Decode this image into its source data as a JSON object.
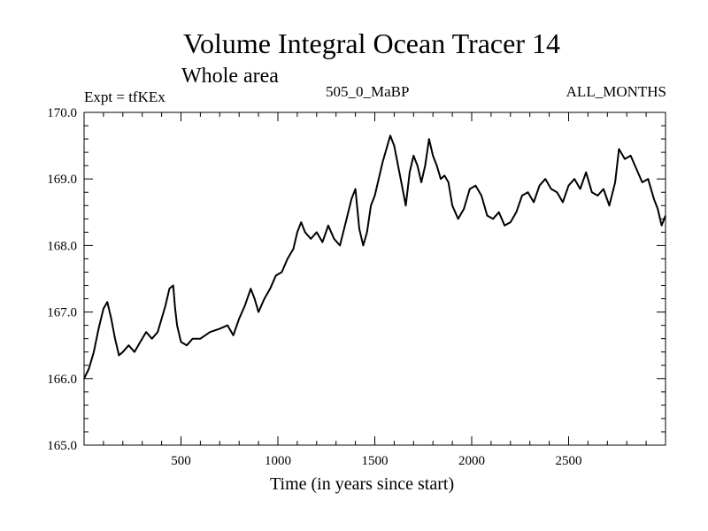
{
  "chart_data": {
    "type": "line",
    "title": "Volume Integral Ocean Tracer 14",
    "subtitle": "Whole area",
    "annotations": {
      "left": "Expt = tfKEx",
      "center": "505_0_MaBP",
      "right": "ALL_MONTHS"
    },
    "xlabel": "Time (in years since start)",
    "ylabel": "",
    "xlim": [
      0,
      3000
    ],
    "ylim": [
      165.0,
      170.0
    ],
    "x_ticks": [
      500,
      1000,
      1500,
      2000,
      2500
    ],
    "x_tick_labels": [
      "500",
      "1000",
      "1500",
      "2000",
      "2500"
    ],
    "y_ticks": [
      165.0,
      166.0,
      167.0,
      168.0,
      169.0,
      170.0
    ],
    "y_tick_labels": [
      "165.0",
      "166.0",
      "167.0",
      "168.0",
      "169.0",
      "170.0"
    ],
    "grid": false,
    "legend": "none",
    "line_color": "#000000",
    "series": [
      {
        "x": [
          0,
          25,
          50,
          75,
          100,
          120,
          140,
          160,
          180,
          200,
          230,
          260,
          290,
          320,
          350,
          380,
          400,
          420,
          440,
          460,
          470,
          480,
          500,
          530,
          560,
          600,
          650,
          700,
          740,
          770,
          800,
          830,
          860,
          880,
          900,
          930,
          960,
          990,
          1020,
          1050,
          1080,
          1100,
          1120,
          1140,
          1170,
          1200,
          1230,
          1260,
          1290,
          1320,
          1350,
          1380,
          1400,
          1420,
          1440,
          1460,
          1480,
          1500,
          1520,
          1540,
          1560,
          1580,
          1600,
          1620,
          1640,
          1660,
          1680,
          1700,
          1720,
          1740,
          1760,
          1780,
          1800,
          1820,
          1840,
          1860,
          1880,
          1900,
          1930,
          1960,
          1990,
          2020,
          2050,
          2080,
          2110,
          2140,
          2170,
          2200,
          2230,
          2260,
          2290,
          2320,
          2350,
          2380,
          2410,
          2440,
          2470,
          2500,
          2530,
          2560,
          2590,
          2620,
          2650,
          2680,
          2710,
          2740,
          2760,
          2790,
          2820,
          2850,
          2880,
          2910,
          2940,
          2960,
          2980,
          3000
        ],
        "y": [
          166.0,
          166.15,
          166.4,
          166.75,
          167.05,
          167.15,
          166.9,
          166.6,
          166.35,
          166.4,
          166.5,
          166.4,
          166.55,
          166.7,
          166.6,
          166.7,
          166.9,
          167.1,
          167.35,
          167.4,
          167.05,
          166.8,
          166.55,
          166.5,
          166.6,
          166.6,
          166.7,
          166.75,
          166.8,
          166.65,
          166.9,
          167.1,
          167.35,
          167.2,
          167.0,
          167.2,
          167.35,
          167.55,
          167.6,
          167.8,
          167.95,
          168.2,
          168.35,
          168.2,
          168.1,
          168.2,
          168.05,
          168.3,
          168.1,
          168.0,
          168.35,
          168.7,
          168.85,
          168.25,
          168.0,
          168.2,
          168.6,
          168.75,
          169.0,
          169.25,
          169.45,
          169.65,
          169.5,
          169.2,
          168.9,
          168.6,
          169.1,
          169.35,
          169.2,
          168.95,
          169.2,
          169.6,
          169.35,
          169.2,
          169.0,
          169.05,
          168.95,
          168.6,
          168.4,
          168.55,
          168.85,
          168.9,
          168.75,
          168.45,
          168.4,
          168.5,
          168.3,
          168.35,
          168.5,
          168.75,
          168.8,
          168.65,
          168.9,
          169.0,
          168.85,
          168.8,
          168.65,
          168.9,
          169.0,
          168.85,
          169.1,
          168.8,
          168.75,
          168.85,
          168.6,
          168.95,
          169.45,
          169.3,
          169.35,
          169.15,
          168.95,
          169.0,
          168.7,
          168.55,
          168.3,
          168.45
        ]
      }
    ]
  }
}
